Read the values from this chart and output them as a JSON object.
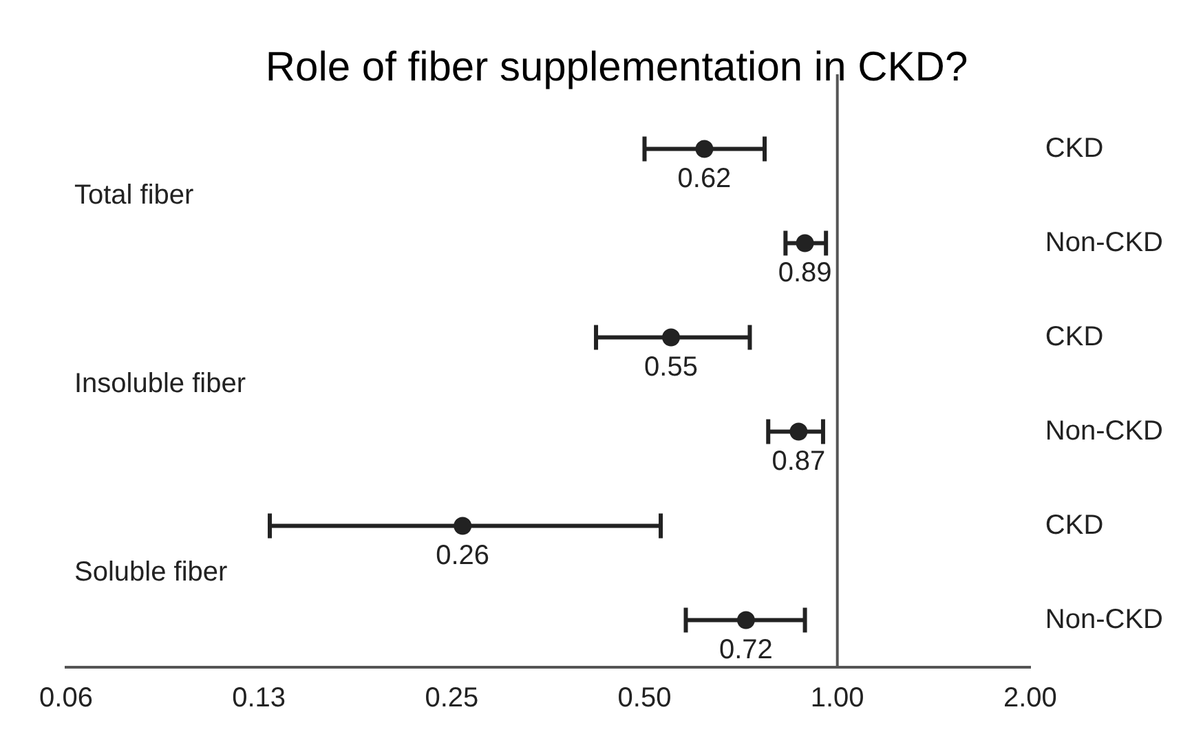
{
  "chart_data": {
    "type": "scatter",
    "orientation": "horizontal",
    "title": "Role of fiber supplementation in CKD?",
    "categories": [
      "CKD",
      "Non-CKD",
      "CKD",
      "Non-CKD",
      "CKD",
      "Non-CKD"
    ],
    "values": [
      0.62,
      0.89,
      0.55,
      0.87,
      0.26,
      0.72
    ],
    "errors": [
      [
        0.5,
        0.77
      ],
      [
        0.83,
        0.96
      ],
      [
        0.42,
        0.73
      ],
      [
        0.78,
        0.95
      ],
      [
        0.13,
        0.53
      ],
      [
        0.58,
        0.89
      ]
    ],
    "color": "#222222",
    "marker": "circle",
    "data_labels": true,
    "log": "x",
    "xlim": [
      0.0625,
      2
    ],
    "xticks": [
      {
        "value": 0.0625,
        "label": "0.06"
      },
      {
        "value": 0.125,
        "label": "0.13"
      },
      {
        "value": 0.25,
        "label": "0.25"
      },
      {
        "value": 0.5,
        "label": "0.50"
      },
      {
        "value": 1,
        "label": "1.00"
      },
      {
        "value": 2,
        "label": "2.00"
      }
    ],
    "ref_lines": [
      {
        "axis": "x",
        "value": 1,
        "color": "#555555"
      }
    ],
    "annotations": [
      "Total fiber",
      "Insoluble fiber",
      "Soluble fiber"
    ],
    "grid": false,
    "legend": false
  }
}
